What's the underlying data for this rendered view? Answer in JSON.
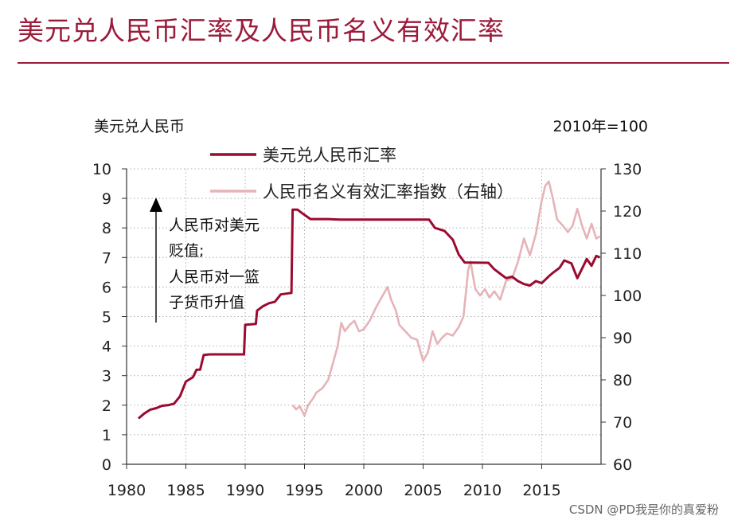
{
  "title": "美元兑人民币汇率及人民币名义有效汇率",
  "watermark": "CSDN @PD我是你的真爱粉",
  "colors": {
    "title": "#9b1b3b",
    "usdcny": "#9b0a2f",
    "neer": "#e6b3b8",
    "grid": "#b0b0b0"
  },
  "chart_data": {
    "type": "line",
    "left_unit": "美元兑人民币",
    "right_unit": "2010年=100",
    "xlim": [
      1980,
      2020
    ],
    "ylim_left": [
      0,
      10
    ],
    "ylim_right": [
      60,
      130
    ],
    "x_ticks": [
      "1980",
      "1985",
      "1990",
      "1995",
      "2000",
      "2005",
      "2010",
      "2015"
    ],
    "y_ticks_left": [
      "0",
      "1",
      "2",
      "3",
      "4",
      "5",
      "6",
      "7",
      "8",
      "9",
      "10"
    ],
    "y_ticks_right": [
      "60",
      "70",
      "80",
      "90",
      "100",
      "110",
      "120",
      "130"
    ],
    "legend_position": "top-center",
    "grid": true,
    "annotation": {
      "lines": [
        "人民币对美元",
        "贬值;",
        "人民币对一篮",
        "子货币升值"
      ],
      "arrow": "up"
    },
    "series": [
      {
        "name": "美元兑人民币汇率",
        "axis": "left",
        "points": [
          [
            1981.0,
            1.55
          ],
          [
            1981.5,
            1.72
          ],
          [
            1982.0,
            1.85
          ],
          [
            1982.5,
            1.9
          ],
          [
            1983.0,
            1.98
          ],
          [
            1983.5,
            2.0
          ],
          [
            1984.0,
            2.05
          ],
          [
            1984.5,
            2.3
          ],
          [
            1985.0,
            2.8
          ],
          [
            1985.6,
            2.95
          ],
          [
            1985.9,
            3.2
          ],
          [
            1986.2,
            3.2
          ],
          [
            1986.5,
            3.7
          ],
          [
            1987.0,
            3.72
          ],
          [
            1989.9,
            3.72
          ],
          [
            1990.0,
            4.72
          ],
          [
            1990.9,
            4.75
          ],
          [
            1991.0,
            5.2
          ],
          [
            1991.5,
            5.35
          ],
          [
            1992.0,
            5.45
          ],
          [
            1992.5,
            5.5
          ],
          [
            1993.0,
            5.75
          ],
          [
            1993.9,
            5.8
          ],
          [
            1994.0,
            8.62
          ],
          [
            1994.4,
            8.62
          ],
          [
            1994.8,
            8.5
          ],
          [
            1995.5,
            8.3
          ],
          [
            1997.0,
            8.3
          ],
          [
            1998.0,
            8.28
          ],
          [
            2005.5,
            8.28
          ],
          [
            2006.0,
            8.0
          ],
          [
            2006.8,
            7.9
          ],
          [
            2007.5,
            7.6
          ],
          [
            2008.0,
            7.1
          ],
          [
            2008.5,
            6.83
          ],
          [
            2010.5,
            6.82
          ],
          [
            2011.0,
            6.6
          ],
          [
            2011.5,
            6.45
          ],
          [
            2012.0,
            6.3
          ],
          [
            2012.5,
            6.35
          ],
          [
            2013.0,
            6.2
          ],
          [
            2013.5,
            6.1
          ],
          [
            2014.0,
            6.05
          ],
          [
            2014.5,
            6.2
          ],
          [
            2015.0,
            6.13
          ],
          [
            2015.7,
            6.4
          ],
          [
            2016.0,
            6.5
          ],
          [
            2016.5,
            6.65
          ],
          [
            2016.9,
            6.9
          ],
          [
            2017.5,
            6.8
          ],
          [
            2018.0,
            6.3
          ],
          [
            2018.5,
            6.7
          ],
          [
            2018.8,
            6.95
          ],
          [
            2019.2,
            6.72
          ],
          [
            2019.6,
            7.05
          ],
          [
            2019.9,
            7.0
          ]
        ]
      },
      {
        "name": "人民币名义有效汇率指数（右轴）",
        "axis": "right",
        "points": [
          [
            1994.0,
            74.0
          ],
          [
            1994.3,
            73.0
          ],
          [
            1994.6,
            73.8
          ],
          [
            1995.0,
            71.5
          ],
          [
            1995.3,
            74.0
          ],
          [
            1995.7,
            75.5
          ],
          [
            1996.0,
            77.0
          ],
          [
            1996.5,
            78.0
          ],
          [
            1997.0,
            80.0
          ],
          [
            1997.4,
            84.0
          ],
          [
            1997.8,
            88.0
          ],
          [
            1998.1,
            93.5
          ],
          [
            1998.4,
            91.5
          ],
          [
            1998.8,
            93.0
          ],
          [
            1999.2,
            94.0
          ],
          [
            1999.6,
            91.5
          ],
          [
            2000.0,
            92.0
          ],
          [
            2000.5,
            94.0
          ],
          [
            2001.0,
            97.0
          ],
          [
            2001.5,
            99.5
          ],
          [
            2002.0,
            102.0
          ],
          [
            2002.3,
            99.0
          ],
          [
            2002.7,
            96.5
          ],
          [
            2003.0,
            93.0
          ],
          [
            2003.5,
            91.5
          ],
          [
            2004.0,
            90.0
          ],
          [
            2004.5,
            89.5
          ],
          [
            2005.0,
            84.5
          ],
          [
            2005.4,
            86.5
          ],
          [
            2005.8,
            91.5
          ],
          [
            2006.2,
            88.5
          ],
          [
            2006.6,
            90.0
          ],
          [
            2007.0,
            91.0
          ],
          [
            2007.5,
            90.5
          ],
          [
            2008.0,
            92.5
          ],
          [
            2008.4,
            95.0
          ],
          [
            2008.8,
            106.0
          ],
          [
            2009.0,
            108.0
          ],
          [
            2009.4,
            101.5
          ],
          [
            2009.8,
            100.0
          ],
          [
            2010.2,
            101.5
          ],
          [
            2010.6,
            99.5
          ],
          [
            2011.0,
            101.0
          ],
          [
            2011.5,
            99.0
          ],
          [
            2012.0,
            103.5
          ],
          [
            2012.5,
            104.0
          ],
          [
            2013.0,
            108.0
          ],
          [
            2013.5,
            113.5
          ],
          [
            2014.0,
            109.5
          ],
          [
            2014.5,
            114.5
          ],
          [
            2015.0,
            122.5
          ],
          [
            2015.3,
            126.0
          ],
          [
            2015.6,
            127.0
          ],
          [
            2015.9,
            123.5
          ],
          [
            2016.3,
            118.0
          ],
          [
            2016.8,
            116.5
          ],
          [
            2017.2,
            115.0
          ],
          [
            2017.6,
            116.5
          ],
          [
            2018.0,
            120.5
          ],
          [
            2018.4,
            116.5
          ],
          [
            2018.8,
            113.5
          ],
          [
            2019.2,
            117.0
          ],
          [
            2019.6,
            113.5
          ],
          [
            2019.9,
            114.0
          ]
        ]
      }
    ]
  }
}
